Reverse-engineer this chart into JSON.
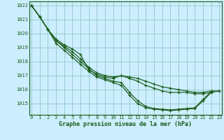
{
  "xlabel": "Graphe pression niveau de la mer (hPa)",
  "bg_color": "#cceeff",
  "grid_color": "#99cccc",
  "line_color": "#1a5c1a",
  "ylim": [
    1014.2,
    1022.3
  ],
  "yticks": [
    1015,
    1016,
    1017,
    1018,
    1019,
    1020,
    1021,
    1022
  ],
  "x_ticks": [
    0,
    1,
    2,
    3,
    4,
    5,
    6,
    7,
    8,
    9,
    10,
    11,
    12,
    13,
    14,
    15,
    16,
    17,
    18,
    19,
    20,
    21,
    22,
    23
  ],
  "series": [
    [
      1022.0,
      1021.2,
      1020.3,
      1019.6,
      1019.2,
      1018.9,
      1018.5,
      1017.4,
      1017.1,
      1016.9,
      1016.8,
      1017.0,
      1016.9,
      1016.8,
      1016.6,
      1016.4,
      1016.2,
      1016.1,
      1016.0,
      1015.9,
      1015.8,
      1015.8,
      1015.9,
      1015.9
    ],
    [
      1022.0,
      1021.2,
      1020.3,
      1019.5,
      1019.1,
      1018.7,
      1018.2,
      1017.6,
      1017.2,
      1017.0,
      1016.9,
      1017.0,
      1016.8,
      1016.6,
      1016.3,
      1016.1,
      1015.9,
      1015.8,
      1015.8,
      1015.8,
      1015.7,
      1015.7,
      1015.8,
      1015.9
    ],
    [
      1022.0,
      1021.2,
      1020.3,
      1019.5,
      1019.0,
      1018.5,
      1018.0,
      1017.5,
      1017.0,
      1016.8,
      1016.6,
      1016.5,
      1015.8,
      1015.2,
      1014.8,
      1014.65,
      1014.6,
      1014.55,
      1014.6,
      1014.65,
      1014.7,
      1015.3,
      1015.85,
      null
    ],
    [
      1022.0,
      1021.2,
      1020.3,
      1019.3,
      1018.8,
      1018.3,
      1017.8,
      1017.3,
      1016.9,
      1016.7,
      1016.5,
      1016.3,
      1015.6,
      1015.0,
      1014.7,
      1014.6,
      1014.55,
      1014.5,
      1014.55,
      1014.6,
      1014.65,
      1015.2,
      1015.8,
      null
    ]
  ]
}
